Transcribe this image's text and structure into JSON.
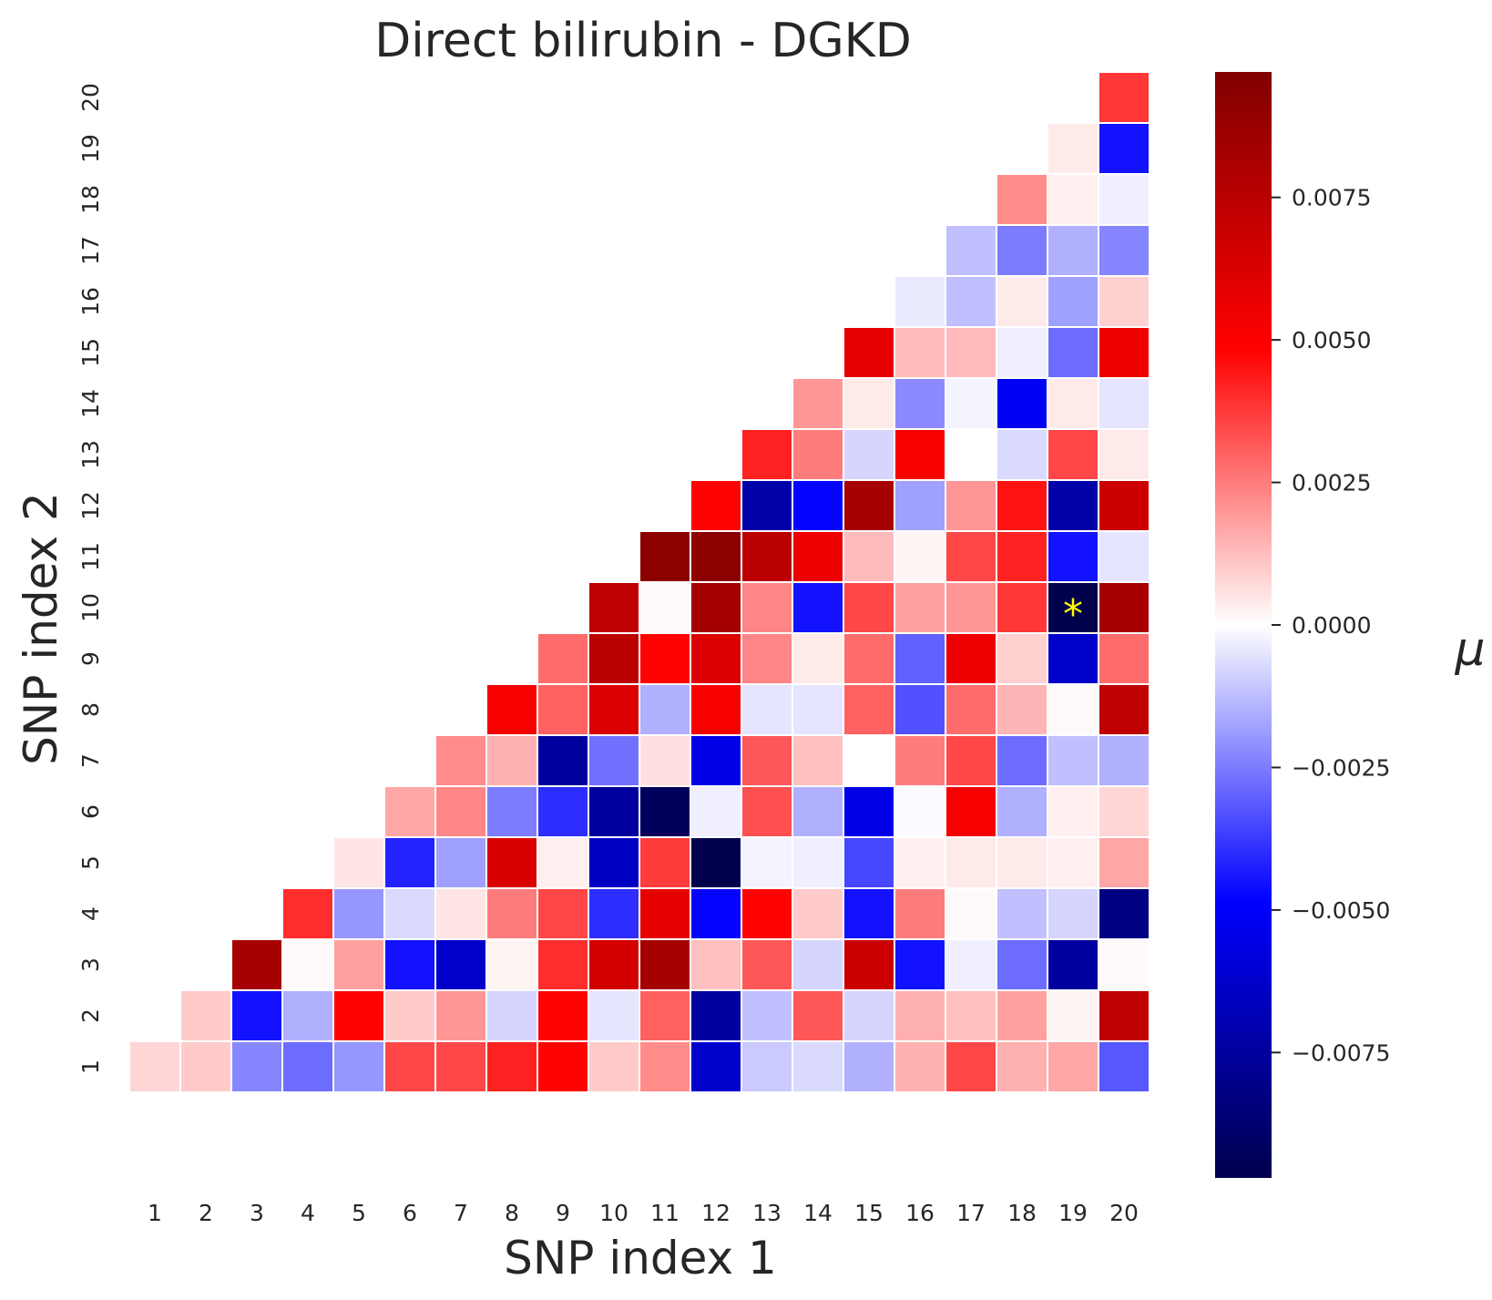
{
  "chart_data": {
    "type": "heatmap",
    "title": "Direct bilirubin - DGKD",
    "xlabel": "SNP index 1",
    "ylabel": "SNP index 2",
    "x_ticks": [
      "1",
      "2",
      "3",
      "4",
      "5",
      "6",
      "7",
      "8",
      "9",
      "10",
      "11",
      "12",
      "13",
      "14",
      "15",
      "16",
      "17",
      "18",
      "19",
      "20"
    ],
    "y_ticks": [
      "1",
      "2",
      "3",
      "4",
      "5",
      "6",
      "7",
      "8",
      "9",
      "10",
      "11",
      "12",
      "13",
      "14",
      "15",
      "16",
      "17",
      "18",
      "19",
      "20"
    ],
    "mask": "upper triangle (x >= y shown)",
    "colormap": "seismic",
    "colorbar_label": "μ",
    "vmin": -0.0097,
    "vmax": 0.0097,
    "colorbar_ticks": [
      "0.0075",
      "0.0050",
      "0.0025",
      "0.0000",
      "−0.0025",
      "−0.0050",
      "−0.0075"
    ],
    "colorbar_tick_values": [
      0.0075,
      0.005,
      0.0025,
      0.0,
      -0.0025,
      -0.005,
      -0.0075
    ],
    "annotation": {
      "x": 19,
      "y": 10,
      "text": "*",
      "color": "#ffff00"
    },
    "values": [
      [
        0.0008,
        0.001,
        -0.0023,
        -0.0028,
        -0.002,
        0.0035,
        0.0035,
        0.0042,
        0.0048,
        0.001,
        0.0022,
        -0.0062,
        -0.001,
        -0.0007,
        -0.0015,
        0.0015,
        0.0035,
        0.0015,
        0.0017,
        -0.0032
      ],
      [
        null,
        0.001,
        -0.0045,
        -0.0015,
        0.0048,
        0.001,
        0.002,
        -0.0008,
        0.0048,
        -0.0005,
        0.003,
        -0.0075,
        -0.0012,
        0.0032,
        -0.0008,
        0.0015,
        0.0012,
        0.0018,
        0.0002,
        0.0073
      ],
      [
        null,
        null,
        0.0082,
        0.0001,
        0.0018,
        -0.0045,
        -0.0063,
        0.0002,
        0.004,
        0.0065,
        0.0083,
        0.0012,
        0.0032,
        -0.0008,
        0.0068,
        -0.0045,
        -0.0003,
        -0.0028,
        -0.0075,
        0.0001
      ],
      [
        null,
        null,
        null,
        0.004,
        -0.002,
        -0.0007,
        0.0005,
        0.0025,
        0.0035,
        -0.004,
        0.0058,
        -0.0048,
        0.0048,
        0.001,
        -0.0045,
        0.0025,
        0.0001,
        -0.0012,
        -0.0008,
        -0.0082
      ],
      [
        null,
        null,
        null,
        null,
        0.0005,
        -0.0042,
        -0.0018,
        0.0063,
        0.0003,
        -0.0065,
        0.0037,
        -0.0097,
        -0.0002,
        -0.0003,
        -0.0035,
        0.0003,
        0.0004,
        0.0004,
        0.0003,
        0.0017
      ],
      [
        null,
        null,
        null,
        null,
        null,
        0.0017,
        0.0023,
        -0.0025,
        -0.004,
        -0.0075,
        -0.0093,
        -0.0003,
        0.0033,
        -0.0015,
        -0.0055,
        -0.0001,
        0.0052,
        -0.0015,
        0.0003,
        0.0008
      ],
      [
        null,
        null,
        null,
        null,
        null,
        null,
        0.0022,
        0.0015,
        -0.0075,
        -0.0027,
        0.0006,
        -0.0055,
        0.0032,
        0.0012,
        0.0,
        0.0025,
        0.0035,
        -0.0028,
        -0.0012,
        -0.0015
      ],
      [
        null,
        null,
        null,
        null,
        null,
        null,
        null,
        0.0052,
        0.003,
        0.0062,
        -0.0015,
        0.0052,
        -0.0005,
        -0.0005,
        0.003,
        -0.0033,
        0.0028,
        0.0014,
        0.0001,
        0.0073
      ],
      [
        null,
        null,
        null,
        null,
        null,
        null,
        null,
        null,
        0.0028,
        0.0075,
        0.0048,
        0.0062,
        0.0023,
        0.0004,
        0.0028,
        -0.003,
        0.0055,
        0.0009,
        -0.0062,
        0.0028
      ],
      [
        null,
        null,
        null,
        null,
        null,
        null,
        null,
        null,
        null,
        0.0073,
        0.0001,
        0.0083,
        0.0023,
        -0.0045,
        0.0035,
        0.0018,
        0.002,
        0.0038,
        -0.0097,
        0.0082
      ],
      [
        null,
        null,
        null,
        null,
        null,
        null,
        null,
        null,
        null,
        null,
        0.0092,
        0.0092,
        0.0075,
        0.0055,
        0.0013,
        0.0002,
        0.0035,
        0.0042,
        -0.0045,
        -0.0005
      ],
      [
        null,
        null,
        null,
        null,
        null,
        null,
        null,
        null,
        null,
        null,
        null,
        0.0048,
        -0.0072,
        -0.0048,
        0.0082,
        -0.0018,
        0.002,
        0.0045,
        -0.0072,
        0.0068
      ],
      [
        null,
        null,
        null,
        null,
        null,
        null,
        null,
        null,
        null,
        null,
        null,
        null,
        0.0042,
        0.0025,
        -0.0008,
        0.0052,
        0.0,
        -0.0007,
        0.0035,
        0.0004
      ],
      [
        null,
        null,
        null,
        null,
        null,
        null,
        null,
        null,
        null,
        null,
        null,
        null,
        null,
        0.002,
        0.0004,
        -0.0022,
        -0.0002,
        -0.0052,
        0.0004,
        -0.0005
      ],
      [
        null,
        null,
        null,
        null,
        null,
        null,
        null,
        null,
        null,
        null,
        null,
        null,
        null,
        null,
        0.0058,
        0.0013,
        0.0013,
        -0.0003,
        -0.0028,
        0.0055
      ],
      [
        null,
        null,
        null,
        null,
        null,
        null,
        null,
        null,
        null,
        null,
        null,
        null,
        null,
        null,
        null,
        -0.0004,
        -0.0012,
        0.0004,
        -0.0018,
        0.0009
      ],
      [
        null,
        null,
        null,
        null,
        null,
        null,
        null,
        null,
        null,
        null,
        null,
        null,
        null,
        null,
        null,
        null,
        -0.0012,
        -0.0025,
        -0.0015,
        -0.0023
      ],
      [
        null,
        null,
        null,
        null,
        null,
        null,
        null,
        null,
        null,
        null,
        null,
        null,
        null,
        null,
        null,
        null,
        null,
        0.0022,
        0.0003,
        -0.0003
      ],
      [
        null,
        null,
        null,
        null,
        null,
        null,
        null,
        null,
        null,
        null,
        null,
        null,
        null,
        null,
        null,
        null,
        null,
        null,
        0.0004,
        -0.0045
      ],
      [
        null,
        null,
        null,
        null,
        null,
        null,
        null,
        null,
        null,
        null,
        null,
        null,
        null,
        null,
        null,
        null,
        null,
        null,
        null,
        0.0038
      ]
    ]
  }
}
